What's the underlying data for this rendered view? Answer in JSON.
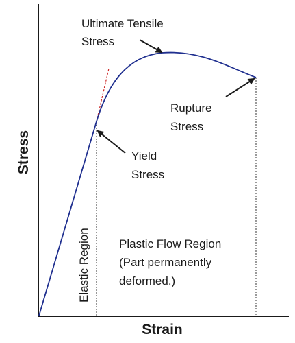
{
  "diagram": {
    "x_axis_label": "Strain",
    "y_axis_label": "Stress",
    "annotations": {
      "ultimate": [
        "Ultimate Tensile",
        "Stress"
      ],
      "rupture": [
        "Rupture",
        "Stress"
      ],
      "yield": [
        "Yield",
        "Stress"
      ]
    },
    "regions": {
      "elastic": "Elastic Region",
      "plastic": [
        "Plastic Flow Region",
        "(Part permanently",
        "deformed.)"
      ]
    },
    "colors": {
      "curve": "#1f2f8f",
      "elastic_extension": "#cc2222",
      "axes": "#1a1a1a",
      "text": "#1a1a1a"
    }
  }
}
